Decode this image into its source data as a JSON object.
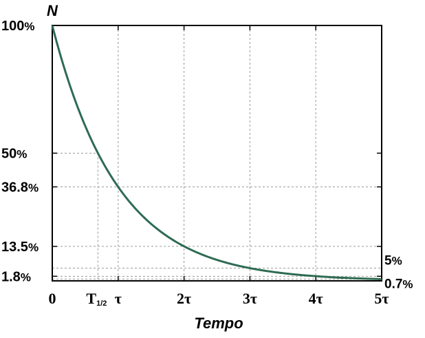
{
  "chart_data": {
    "type": "line",
    "title": "",
    "ylabel": "N",
    "xlabel": "Tempo",
    "xlim": [
      0,
      5
    ],
    "ylim": [
      0,
      100
    ],
    "grid": true,
    "x_ticks": [
      {
        "value": 0,
        "label": "0"
      },
      {
        "value": 0.6931,
        "label": "T",
        "sub": "1/2"
      },
      {
        "value": 1,
        "label": "τ"
      },
      {
        "value": 2,
        "label": "2τ"
      },
      {
        "value": 3,
        "label": "3τ"
      },
      {
        "value": 4,
        "label": "4τ"
      },
      {
        "value": 5,
        "label": "5τ"
      }
    ],
    "y_ticks_left": [
      {
        "value": 100,
        "num": "100",
        "pct": "%"
      },
      {
        "value": 50,
        "num": "50",
        "pct": "%"
      },
      {
        "value": 36.8,
        "num": "36.8",
        "pct": "%"
      },
      {
        "value": 13.5,
        "num": "13.5",
        "pct": "%"
      },
      {
        "value": 1.8,
        "num": "1.8",
        "pct": "%"
      }
    ],
    "y_ticks_right": [
      {
        "value": 5,
        "num": "5",
        "pct": "%"
      },
      {
        "value": 0.7,
        "num": "0.7",
        "pct": "%"
      }
    ],
    "series": [
      {
        "color": "#2e6b53",
        "x": [
          0,
          0.25,
          0.5,
          0.6931,
          1,
          1.5,
          2,
          2.5,
          3,
          3.5,
          4,
          4.5,
          5
        ],
        "y": [
          100,
          77.9,
          60.7,
          50,
          36.8,
          22.3,
          13.5,
          8.2,
          5.0,
          3.0,
          1.8,
          1.1,
          0.7
        ]
      }
    ]
  }
}
